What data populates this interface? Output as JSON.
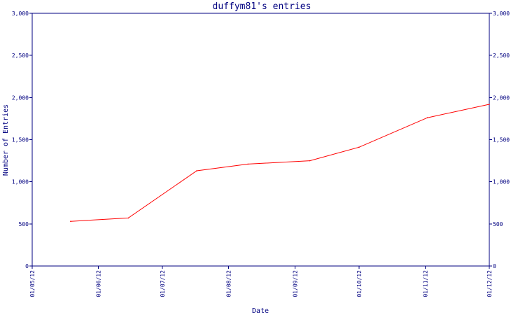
{
  "chart_data": {
    "type": "line",
    "title": "duffym81's entries",
    "xlabel": "Date",
    "ylabel": "Number of Entries",
    "ylim": [
      0,
      3000
    ],
    "yticks": [
      0,
      500,
      1000,
      1500,
      2000,
      2500,
      3000
    ],
    "ytick_labels": [
      "0",
      "500",
      "1,000",
      "1,500",
      "2,000",
      "2,500",
      "3,000"
    ],
    "xlim": [
      "2012-05-01",
      "2012-12-01"
    ],
    "xticks": [
      "2012-05-01",
      "2012-06-01",
      "2012-07-01",
      "2012-08-01",
      "2012-09-01",
      "2012-10-01",
      "2012-11-01",
      "2012-12-01"
    ],
    "xtick_labels": [
      "01/05/12",
      "01/06/12",
      "01/07/12",
      "01/08/12",
      "01/09/12",
      "01/10/12",
      "01/11/12",
      "01/12/12"
    ],
    "series": [
      {
        "color": "#ff0000",
        "points": [
          {
            "x": "2012-05-19",
            "y": 530
          },
          {
            "x": "2012-06-15",
            "y": 570
          },
          {
            "x": "2012-07-17",
            "y": 1130
          },
          {
            "x": "2012-08-10",
            "y": 1210
          },
          {
            "x": "2012-09-08",
            "y": 1250
          },
          {
            "x": "2012-10-01",
            "y": 1410
          },
          {
            "x": "2012-11-02",
            "y": 1760
          },
          {
            "x": "2012-12-01",
            "y": 1920
          }
        ]
      }
    ],
    "colors": {
      "axis": "#000080",
      "text": "#000080",
      "line": "#ff0000",
      "background": "#ffffff"
    },
    "grid": false,
    "right_axis_mirror": true
  }
}
